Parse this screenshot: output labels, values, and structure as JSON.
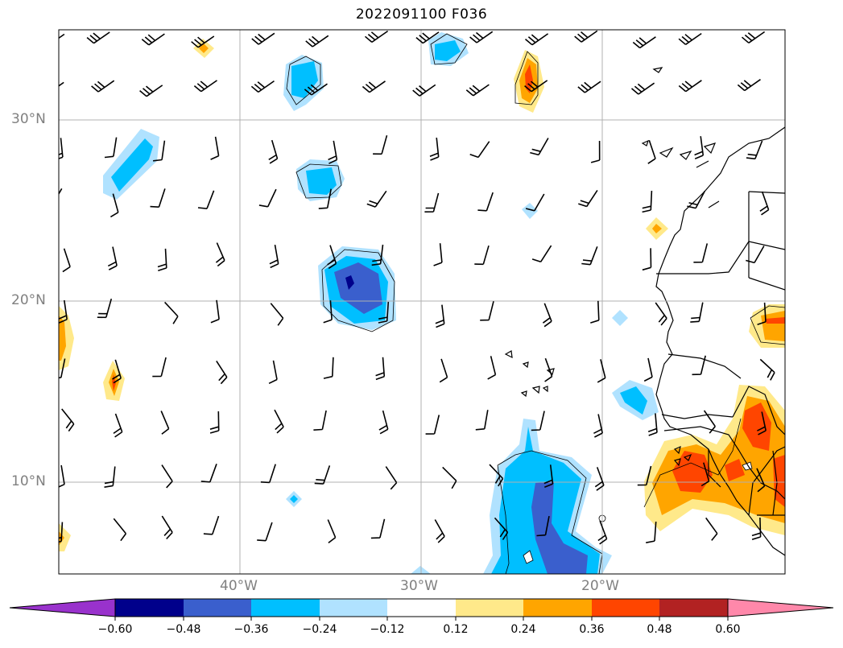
{
  "title": "2022091100 F036",
  "map": {
    "lat_labels": [
      "30°N",
      "20°N",
      "10°N"
    ],
    "lon_labels": [
      "40°W",
      "30°W",
      "20°W"
    ],
    "lat_range": [
      5,
      35
    ],
    "lon_range": [
      -50,
      -10
    ],
    "gridlines": true,
    "features": [
      "coastline",
      "country-borders",
      "wind-barbs",
      "filled-contours"
    ]
  },
  "colorbar": {
    "orientation": "horizontal",
    "extend": "both",
    "ticks": [
      "−0.60",
      "−0.48",
      "−0.36",
      "−0.24",
      "−0.12",
      "0.12",
      "0.24",
      "0.36",
      "0.48",
      "0.60"
    ],
    "colors": [
      "#9932CC",
      "#00008B",
      "#3A5FCD",
      "#00BFFF",
      "#B0E2FF",
      "#FFFFFF",
      "#FFE98A",
      "#FFA500",
      "#FF4500",
      "#B22222",
      "#FF88AA"
    ]
  }
}
